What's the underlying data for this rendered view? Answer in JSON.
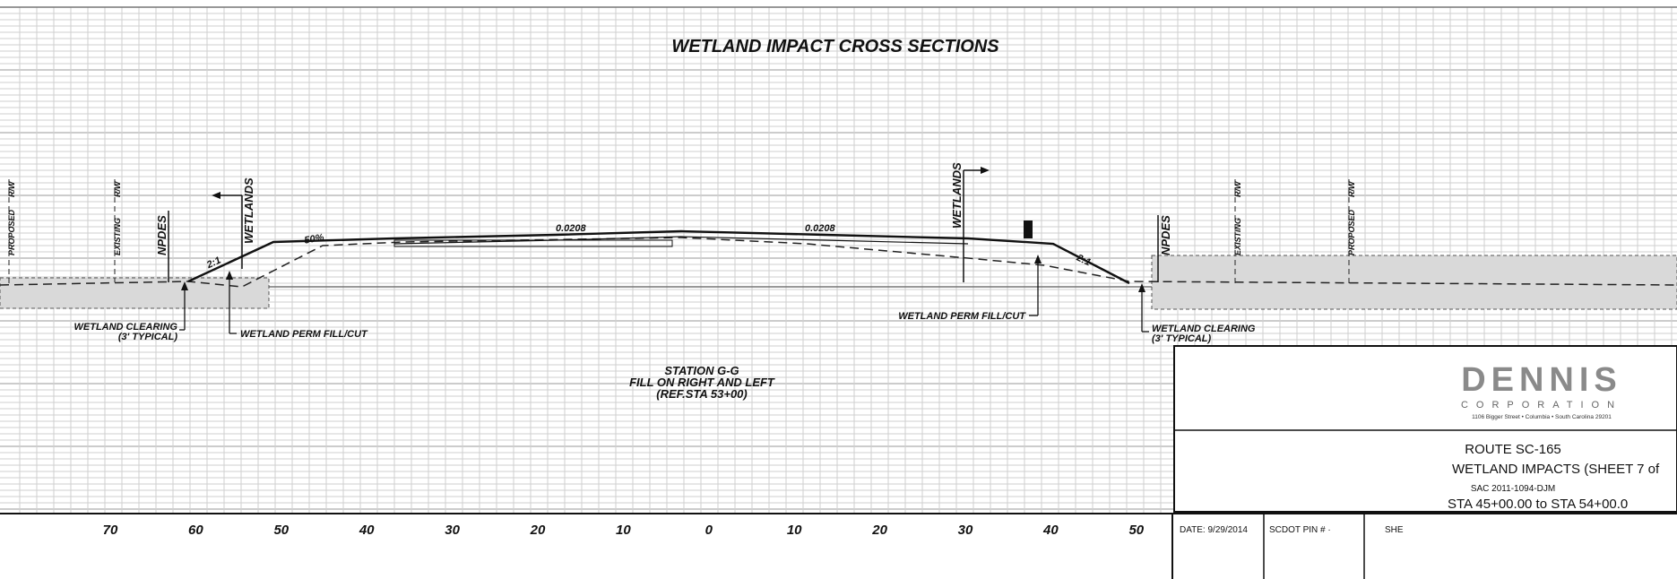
{
  "title": "WETLAND IMPACT CROSS SECTIONS",
  "station": {
    "line1": "STATION G-G",
    "line2": "FILL ON RIGHT AND LEFT",
    "line3": "(REF.STA 53+00)"
  },
  "left_side": {
    "proposed_row": "PROPOSED",
    "row_symbol": "R/W",
    "existing_row": "EXISTING",
    "npdes": "NPDES",
    "wetlands": "WETLANDS",
    "slope_label": "2:1",
    "grade_label": "50%",
    "wetland_clearing": "WETLAND CLEARING",
    "typical": "(3' TYPICAL)",
    "perm_fill_cut": "WETLAND PERM FILL/CUT"
  },
  "center": {
    "slope_left": "0.0208",
    "slope_right": "0.0208"
  },
  "right_side": {
    "wetlands": "WETLANDS",
    "npdes": "NPDES",
    "existing_row": "EXISTING",
    "proposed_row": "PROPOSED",
    "row_symbol": "R/W",
    "slope_label": "2:1",
    "perm_fill_cut": "WETLAND PERM FILL/CUT",
    "wetland_clearing": "WETLAND CLEARING",
    "typical": "(3' TYPICAL)"
  },
  "axis_labels": [
    "70",
    "60",
    "50",
    "40",
    "30",
    "20",
    "10",
    "0",
    "10",
    "20",
    "30",
    "40",
    "50"
  ],
  "title_block": {
    "company": "DENNIS",
    "company_sub": "CORPORATION",
    "address": "1106 Bigger Street • Columbia • South Carolina 29201",
    "route": "ROUTE SC-165",
    "sheet_title": "WETLAND IMPACTS (SHEET 7 of",
    "sac": "SAC 2011-1094-DJM",
    "station_range": "STA 45+00.00 to STA 54+00.0",
    "date": "DATE: 9/29/2014",
    "pin": "SCDOT PIN # ·",
    "sheet": "SHE"
  }
}
